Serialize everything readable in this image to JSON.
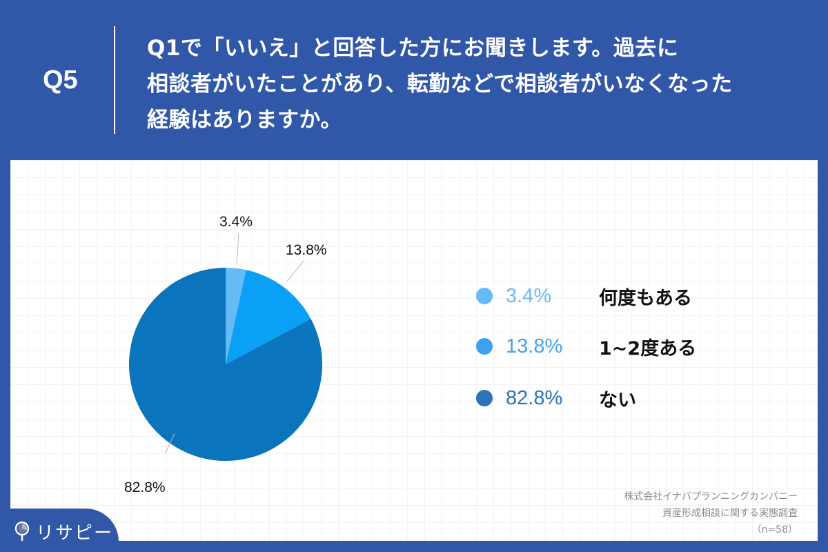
{
  "header": {
    "question_number": "Q5",
    "question_lines": [
      "Q1で「いいえ」と回答した方にお聞きします。過去に",
      "相談者がいたことがあり、転勤などで相談者がいなくなった",
      "経験はありますか。"
    ]
  },
  "chart_data": {
    "type": "pie",
    "title": "Q1で「いいえ」と回答した方にお聞きします。過去に相談者がいたことがあり、転勤などで相談者がいなくなった経験はありますか。",
    "categories": [
      "何度もある",
      "1~2度ある",
      "ない"
    ],
    "values": [
      3.4,
      13.8,
      82.8
    ],
    "labels": [
      "3.4%",
      "13.8%",
      "82.8%"
    ],
    "colors": [
      "#64bbf5",
      "#0aa0f5",
      "#0a74bc"
    ],
    "legend_dot_colors": [
      "#64bbf5",
      "#40a0f0",
      "#2e73b8"
    ],
    "start_angle": "12 o'clock, clockwise",
    "legend_position": "right",
    "n": 58
  },
  "legend": {
    "items": [
      {
        "pct": "3.4%",
        "label": "何度もある",
        "pct_color": "#6cbaf2"
      },
      {
        "pct": "13.8%",
        "label": "1~2度ある",
        "pct_color": "#45a3ee"
      },
      {
        "pct": "82.8%",
        "label": "ない",
        "pct_color": "#2f72b6"
      }
    ]
  },
  "source": {
    "company": "株式会社イナバプランニングカンパニー",
    "survey": "資産形成相談に関する実態調査",
    "sample": "（n=58）"
  },
  "brand": {
    "name": "リサピー",
    "icon": "map-pin-icon"
  }
}
